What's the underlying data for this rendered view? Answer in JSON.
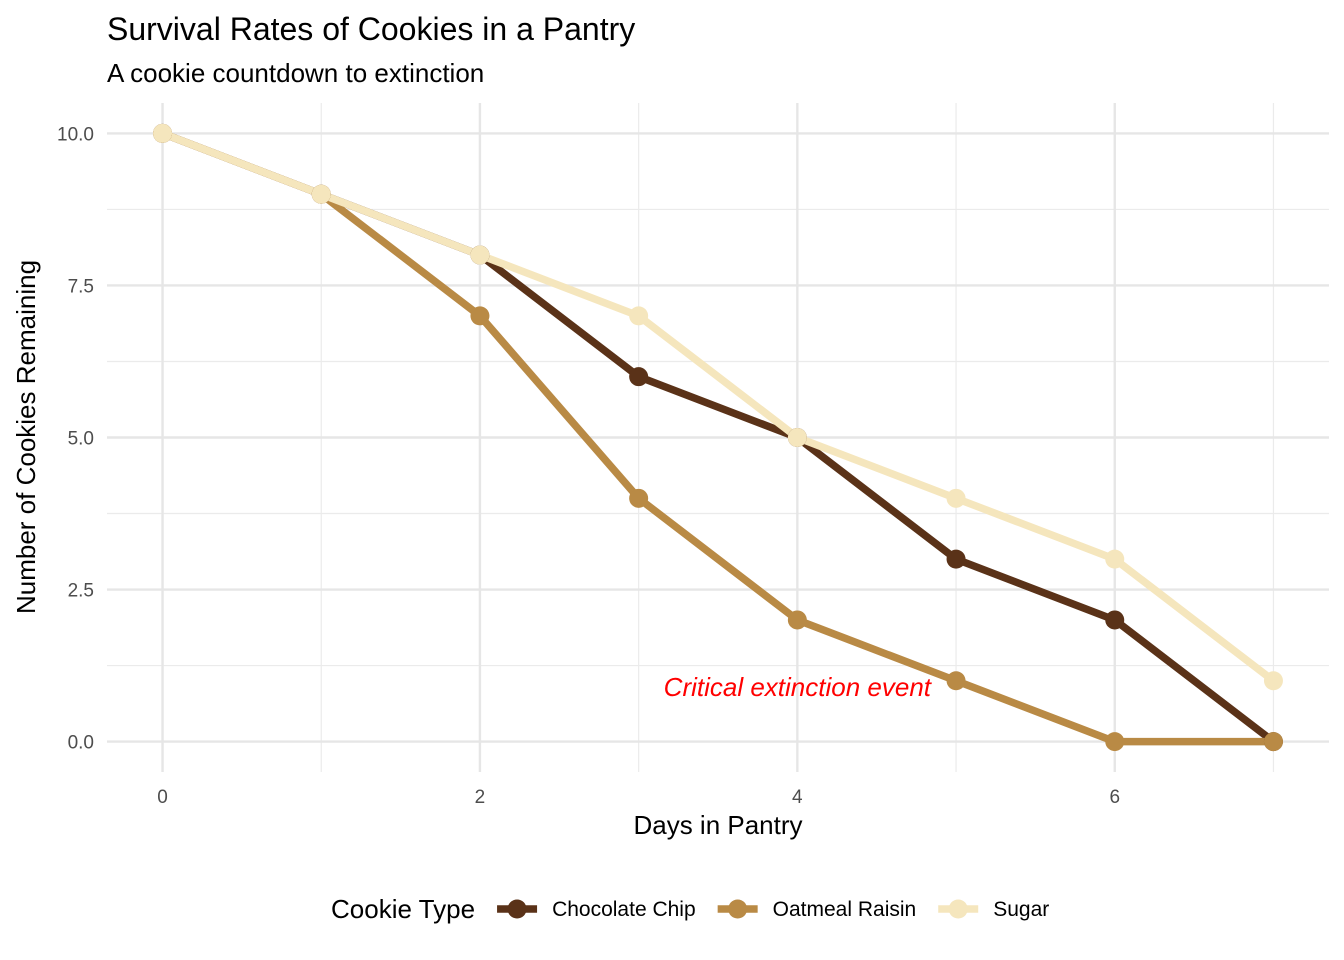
{
  "chart_data": {
    "type": "line",
    "title": "Survival Rates of Cookies in a Pantry",
    "subtitle": "A cookie countdown to extinction",
    "xlabel": "Days in Pantry",
    "ylabel": "Number of Cookies Remaining",
    "x": [
      0,
      1,
      2,
      3,
      4,
      5,
      6,
      7
    ],
    "xlim": [
      -0.35,
      7.35
    ],
    "ylim": [
      -0.5,
      10.5
    ],
    "x_ticks": [
      0,
      2,
      4,
      6
    ],
    "x_tick_labels": [
      "0",
      "2",
      "4",
      "6"
    ],
    "y_ticks": [
      0,
      2.5,
      5,
      7.5,
      10
    ],
    "y_tick_labels": [
      "0.0",
      "2.5",
      "5.0",
      "7.5",
      "10.0"
    ],
    "grid": true,
    "legend": {
      "title": "Cookie Type",
      "position": "bottom"
    },
    "series": [
      {
        "name": "Chocolate Chip",
        "color": "#5a3218",
        "values": [
          10,
          9,
          8,
          6,
          5,
          3,
          2,
          0
        ]
      },
      {
        "name": "Oatmeal Raisin",
        "color": "#b98a45",
        "values": [
          10,
          9,
          7,
          4,
          2,
          1,
          0,
          0
        ]
      },
      {
        "name": "Sugar",
        "color": "#f5e6bd",
        "values": [
          10,
          9,
          8,
          7,
          5,
          4,
          3,
          1
        ]
      }
    ],
    "annotations": [
      {
        "text": "Critical extinction event",
        "x": 4,
        "y": 0.9,
        "color": "#ff0000"
      }
    ]
  }
}
